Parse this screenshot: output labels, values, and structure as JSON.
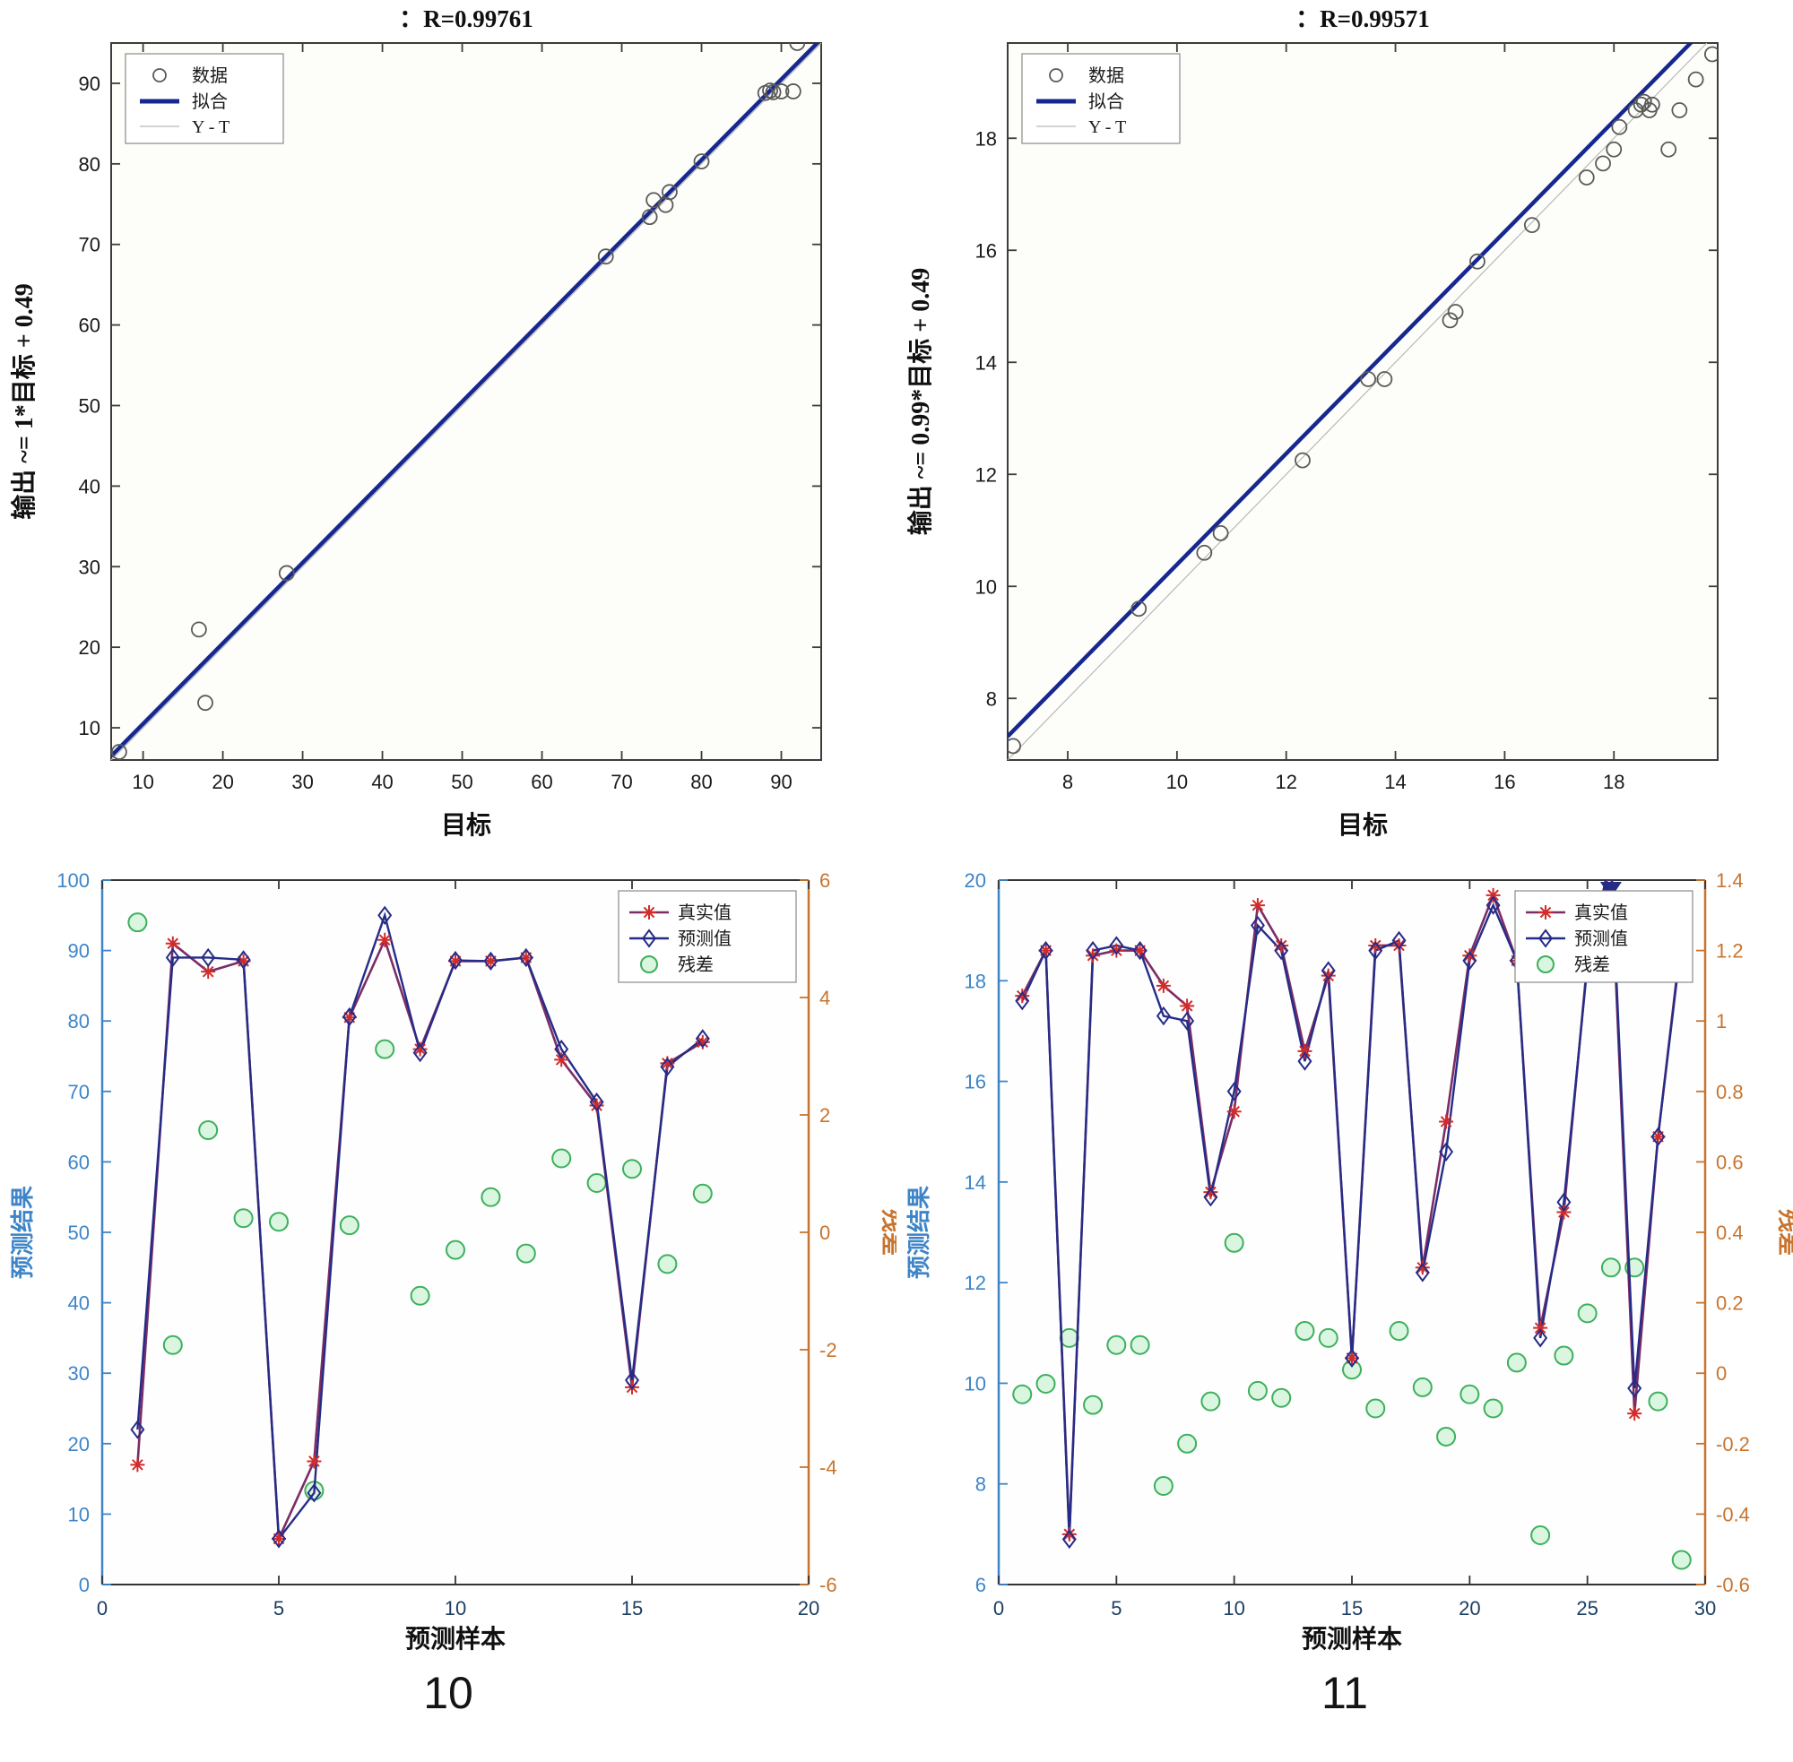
{
  "page": {
    "captions": [
      {
        "label": "10"
      },
      {
        "label": "11"
      }
    ]
  },
  "chart_data": [
    {
      "id": "regression-train",
      "type": "scatter",
      "title": "：R=0.99761",
      "xlabel": "目标",
      "ylabel": "输出 ~= 1*目标 + 0.49",
      "xlim": [
        6,
        95
      ],
      "ylim": [
        6,
        95
      ],
      "xticks": [
        10,
        20,
        30,
        40,
        50,
        60,
        70,
        80,
        90
      ],
      "yticks": [
        10,
        20,
        30,
        40,
        50,
        60,
        70,
        80,
        90
      ],
      "legend": [
        {
          "label": "数据",
          "marker": "circle"
        },
        {
          "label": "拟合",
          "marker": "line-thick"
        },
        {
          "label": "Y - T",
          "marker": "line-thin"
        }
      ],
      "fit": {
        "slope": 1,
        "intercept": 0.49
      },
      "points": [
        [
          7,
          7
        ],
        [
          17,
          22.2
        ],
        [
          17.8,
          13.1
        ],
        [
          28,
          29.2
        ],
        [
          68,
          68.5
        ],
        [
          73.5,
          73.4
        ],
        [
          74,
          75.5
        ],
        [
          75.5,
          74.9
        ],
        [
          76,
          76.5
        ],
        [
          80,
          80.3
        ],
        [
          88,
          88.8
        ],
        [
          88.6,
          89.1
        ],
        [
          89,
          88.9
        ],
        [
          90,
          89
        ],
        [
          91.5,
          89
        ],
        [
          92,
          95
        ]
      ],
      "colors": {
        "fit": "#16288f",
        "marker": "#5a5a5a",
        "yt": "#b8b8b8"
      }
    },
    {
      "id": "regression-test",
      "type": "scatter",
      "title": "：R=0.99571",
      "xlabel": "目标",
      "ylabel": "输出 ~= 0.99*目标 + 0.49",
      "xlim": [
        6.9,
        19.9
      ],
      "ylim": [
        6.9,
        19.7
      ],
      "xticks": [
        8,
        10,
        12,
        14,
        16,
        18
      ],
      "yticks": [
        8,
        10,
        12,
        14,
        16,
        18
      ],
      "legend": [
        {
          "label": "数据",
          "marker": "circle"
        },
        {
          "label": "拟合",
          "marker": "line-thick"
        },
        {
          "label": "Y - T",
          "marker": "line-thin"
        }
      ],
      "fit": {
        "slope": 0.99,
        "intercept": 0.49
      },
      "points": [
        [
          7.0,
          7.15
        ],
        [
          9.3,
          9.6
        ],
        [
          10.5,
          10.6
        ],
        [
          10.8,
          10.95
        ],
        [
          12.3,
          12.25
        ],
        [
          13.5,
          13.7
        ],
        [
          13.8,
          13.7
        ],
        [
          15.0,
          14.75
        ],
        [
          15.1,
          14.9
        ],
        [
          15.5,
          15.8
        ],
        [
          16.5,
          16.45
        ],
        [
          17.5,
          17.3
        ],
        [
          17.8,
          17.55
        ],
        [
          18.0,
          17.8
        ],
        [
          18.1,
          18.2
        ],
        [
          18.4,
          18.5
        ],
        [
          18.5,
          18.6
        ],
        [
          18.55,
          18.65
        ],
        [
          18.65,
          18.5
        ],
        [
          18.7,
          18.6
        ],
        [
          19.0,
          17.8
        ],
        [
          19.2,
          18.5
        ],
        [
          19.5,
          19.05
        ],
        [
          19.8,
          19.5
        ]
      ],
      "colors": {
        "fit": "#16288f",
        "marker": "#5a5a5a",
        "yt": "#b8b8b8"
      }
    },
    {
      "id": "prediction-left",
      "type": "line",
      "xlabel": "预测样本",
      "ylabel_left": "预测结果",
      "ylabel_right": "残差",
      "xlim": [
        0,
        20
      ],
      "ylim_left": [
        0,
        100
      ],
      "ylim_right": [
        -6,
        6
      ],
      "xticks": [
        0,
        5,
        10,
        15,
        20
      ],
      "yticks_left": [
        0,
        10,
        20,
        30,
        40,
        50,
        60,
        70,
        80,
        90,
        100
      ],
      "yticks_right": [
        -6,
        -4,
        -2,
        0,
        2,
        4,
        6
      ],
      "legend": [
        {
          "label": "真实值",
          "marker": "star-line"
        },
        {
          "label": "预测值",
          "marker": "diamond-line"
        },
        {
          "label": "残差",
          "marker": "circle"
        }
      ],
      "x": [
        1,
        2,
        3,
        4,
        5,
        6,
        7,
        8,
        9,
        10,
        11,
        12,
        13,
        14,
        15,
        16,
        17
      ],
      "actual": [
        17,
        91,
        87,
        88.5,
        6.5,
        17.5,
        80.5,
        91.5,
        76,
        88.5,
        88.5,
        89,
        74.5,
        68,
        28,
        74,
        77
      ],
      "predicted": [
        22,
        89,
        89,
        88.7,
        6.5,
        13,
        80.6,
        95,
        75.5,
        88.6,
        88.5,
        89,
        76,
        68.5,
        29,
        73.5,
        77.5
      ],
      "residual": [
        5.28,
        -1.92,
        1.74,
        0.24,
        0.18,
        -4.4,
        0.12,
        3.12,
        -1.08,
        -0.3,
        0.6,
        -0.36,
        1.26,
        0.84,
        1.08,
        -0.54,
        0.66
      ],
      "colors": {
        "actual_line": "#7b2d66",
        "actual_marker": "#d22b2b",
        "predicted": "#252c88",
        "residual_stroke": "#3cb05c",
        "residual_fill": "#bdeec6",
        "left_axis": "#3d85c8",
        "right_axis": "#c8742e"
      }
    },
    {
      "id": "prediction-right",
      "type": "line",
      "xlabel": "预测样本",
      "ylabel_left": "预测结果",
      "ylabel_right": "残差",
      "xlim": [
        0,
        30
      ],
      "ylim_left": [
        6,
        20
      ],
      "ylim_right": [
        -0.6,
        1.4
      ],
      "xticks": [
        0,
        5,
        10,
        15,
        20,
        25,
        30
      ],
      "yticks_left": [
        6,
        8,
        10,
        12,
        14,
        16,
        18,
        20
      ],
      "yticks_right": [
        -0.6,
        -0.4,
        -0.2,
        0,
        0.2,
        0.4,
        0.6,
        0.8,
        1,
        1.2,
        1.4
      ],
      "legend": [
        {
          "label": "真实值",
          "marker": "star-line"
        },
        {
          "label": "预测值",
          "marker": "diamond-line"
        },
        {
          "label": "残差",
          "marker": "circle"
        }
      ],
      "x": [
        1,
        2,
        3,
        4,
        5,
        6,
        7,
        8,
        9,
        10,
        11,
        12,
        13,
        14,
        15,
        16,
        17,
        18,
        19,
        20,
        21,
        22,
        23,
        24,
        25,
        26,
        27,
        28,
        29
      ],
      "actual": [
        17.7,
        18.6,
        7.0,
        18.5,
        18.6,
        18.6,
        17.9,
        17.5,
        13.8,
        15.4,
        19.5,
        18.7,
        16.6,
        18.1,
        10.5,
        18.7,
        18.7,
        12.3,
        15.2,
        18.5,
        19.7,
        18.4,
        11.1,
        13.4,
        18.4,
        20.3,
        9.4,
        14.9,
        18.9
      ],
      "predicted": [
        17.6,
        18.6,
        6.9,
        18.6,
        18.7,
        18.6,
        17.3,
        17.2,
        13.7,
        15.8,
        19.1,
        18.6,
        16.4,
        18.2,
        10.5,
        18.6,
        18.8,
        12.2,
        14.6,
        18.4,
        19.5,
        18.4,
        10.9,
        13.6,
        18.3,
        20.5,
        9.9,
        14.9,
        18.8
      ],
      "residual": [
        -0.06,
        -0.03,
        0.1,
        -0.09,
        0.08,
        0.08,
        -0.32,
        -0.2,
        -0.08,
        0.37,
        -0.05,
        -0.07,
        0.12,
        0.1,
        0.01,
        -0.1,
        0.12,
        -0.04,
        -0.18,
        -0.06,
        -0.1,
        0.03,
        -0.46,
        0.05,
        0.17,
        0.3,
        0.3,
        -0.08,
        -0.53
      ],
      "colors": {
        "actual_line": "#7b2d66",
        "actual_marker": "#d22b2b",
        "predicted": "#252c88",
        "residual_stroke": "#3cb05c",
        "residual_fill": "#bdeec6",
        "left_axis": "#3d85c8",
        "right_axis": "#c8742e"
      }
    }
  ]
}
